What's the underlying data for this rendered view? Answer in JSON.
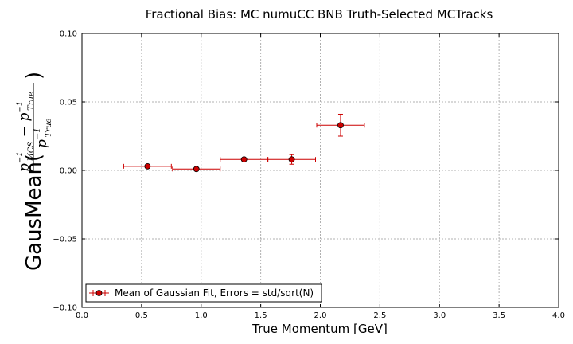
{
  "chart_data": {
    "type": "scatter",
    "title": "Fractional Bias: MC numuCC BNB Truth-Selected MCTracks",
    "xlabel": "True Momentum [GeV]",
    "ylabel": {
      "prefix": "GausMean(",
      "num_p1": "p",
      "num_sup1": "−1",
      "num_sub1": "MCS",
      "num_minus": " − ",
      "num_p2": "p",
      "num_sup2": "−1",
      "num_sub2": "True",
      "den_p": "p",
      "den_sup": "−1",
      "den_sub": "True",
      "suffix": ")"
    },
    "xlim": [
      0.0,
      4.0
    ],
    "ylim": [
      -0.1,
      0.1
    ],
    "xticks": [
      0.0,
      0.5,
      1.0,
      1.5,
      2.0,
      2.5,
      3.0,
      3.5,
      4.0
    ],
    "xtick_labels": [
      "0.0",
      "0.5",
      "1.0",
      "1.5",
      "2.0",
      "2.5",
      "3.0",
      "3.5",
      "4.0"
    ],
    "yticks": [
      -0.1,
      -0.05,
      0.0,
      0.05,
      0.1
    ],
    "ytick_labels": [
      "−0.10",
      "−0.05",
      "0.00",
      "0.05",
      "0.10"
    ],
    "grid": true,
    "legend_position": "bottom-left",
    "series": [
      {
        "name": "Mean of Gaussian Fit, Errors = std/sqrt(N)",
        "color": "#cc0000",
        "points": [
          {
            "x": 0.55,
            "y": 0.003,
            "xerr": 0.2,
            "yerr": 0.001
          },
          {
            "x": 0.96,
            "y": 0.001,
            "xerr": 0.2,
            "yerr": 0.001
          },
          {
            "x": 1.36,
            "y": 0.008,
            "xerr": 0.2,
            "yerr": 0.001
          },
          {
            "x": 1.76,
            "y": 0.008,
            "xerr": 0.2,
            "yerr": 0.0035
          },
          {
            "x": 2.17,
            "y": 0.033,
            "xerr": 0.2,
            "yerr": 0.008
          }
        ]
      }
    ]
  }
}
